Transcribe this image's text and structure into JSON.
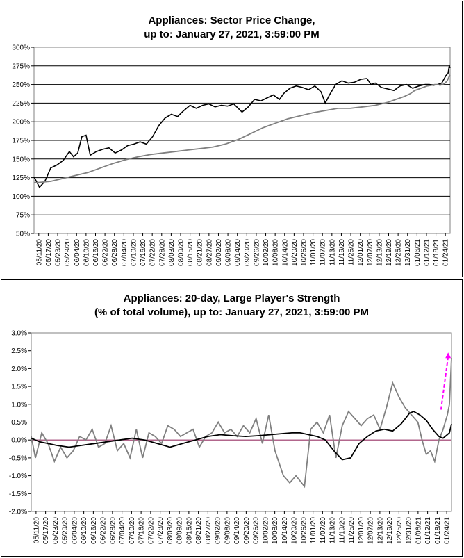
{
  "chart_data": [
    {
      "type": "line",
      "title_line1": "Appliances: Sector Price Change,",
      "title_line2": "up to: January 27, 2021, 3:59:00 PM",
      "ylim": [
        50,
        300
      ],
      "y_ticks": [
        "50%",
        "75%",
        "100%",
        "125%",
        "150%",
        "175%",
        "200%",
        "225%",
        "250%",
        "275%",
        "300%"
      ],
      "x_ticks": [
        "05/11/20",
        "05/17/20",
        "05/23/20",
        "05/29/20",
        "06/04/20",
        "06/10/20",
        "06/16/20",
        "06/22/20",
        "06/28/20",
        "07/04/20",
        "07/10/20",
        "07/16/20",
        "07/22/20",
        "07/28/20",
        "08/03/20",
        "08/09/20",
        "08/15/20",
        "08/21/20",
        "08/27/20",
        "09/02/20",
        "09/08/20",
        "09/14/20",
        "09/20/20",
        "09/26/20",
        "10/02/20",
        "10/08/20",
        "10/14/20",
        "10/20/20",
        "10/26/20",
        "11/01/20",
        "11/07/20",
        "11/13/20",
        "11/19/20",
        "11/25/20",
        "12/01/20",
        "12/07/20",
        "12/13/20",
        "12/19/20",
        "12/25/20",
        "12/31/20",
        "01/06/21",
        "01/12/21",
        "01/18/21",
        "01/24/21"
      ],
      "grid": true,
      "series": [
        {
          "color": "#000000",
          "values": [
            126,
            112,
            120,
            138,
            142,
            148,
            160,
            153,
            158,
            180,
            182,
            155,
            160,
            163,
            165,
            158,
            162,
            168,
            170,
            173,
            170,
            180,
            195,
            205,
            210,
            207,
            215,
            222,
            218,
            222,
            224,
            220,
            222,
            221,
            224,
            213,
            220,
            230,
            228,
            232,
            236,
            230,
            238,
            245,
            248,
            246,
            243,
            248,
            240,
            225,
            236,
            250,
            255,
            252,
            253,
            257,
            258,
            250,
            252,
            246,
            244,
            242,
            248,
            250,
            245,
            248,
            250,
            250,
            249,
            250,
            252,
            262,
            265,
            275,
            272
          ],
          "x_frac": [
            0,
            0.013,
            0.026,
            0.04,
            0.055,
            0.07,
            0.085,
            0.095,
            0.105,
            0.115,
            0.125,
            0.135,
            0.15,
            0.165,
            0.18,
            0.195,
            0.21,
            0.225,
            0.24,
            0.255,
            0.27,
            0.285,
            0.3,
            0.315,
            0.33,
            0.345,
            0.36,
            0.375,
            0.39,
            0.405,
            0.42,
            0.435,
            0.45,
            0.465,
            0.48,
            0.5,
            0.515,
            0.53,
            0.545,
            0.56,
            0.575,
            0.59,
            0.6,
            0.615,
            0.63,
            0.645,
            0.66,
            0.675,
            0.69,
            0.7,
            0.71,
            0.725,
            0.74,
            0.755,
            0.77,
            0.785,
            0.8,
            0.81,
            0.82,
            0.835,
            0.85,
            0.865,
            0.88,
            0.895,
            0.91,
            0.925,
            0.94,
            0.95,
            0.96,
            0.97,
            0.98,
            0.99,
            0.995,
            0.998,
            1.0
          ]
        },
        {
          "color": "#808080",
          "values": [
            118,
            120,
            124,
            128,
            132,
            138,
            144,
            149,
            153,
            156,
            158,
            160,
            162,
            164,
            166,
            170,
            176,
            184,
            192,
            198,
            204,
            208,
            212,
            215,
            218,
            218,
            220,
            222,
            226,
            230,
            234,
            238,
            242,
            244,
            246,
            248,
            249,
            250,
            250,
            249,
            250,
            252,
            255,
            260,
            263
          ],
          "x_frac": [
            0,
            0.04,
            0.07,
            0.1,
            0.13,
            0.16,
            0.19,
            0.22,
            0.25,
            0.28,
            0.31,
            0.34,
            0.37,
            0.4,
            0.43,
            0.46,
            0.49,
            0.52,
            0.55,
            0.58,
            0.61,
            0.64,
            0.67,
            0.7,
            0.73,
            0.76,
            0.79,
            0.82,
            0.85,
            0.87,
            0.89,
            0.905,
            0.915,
            0.925,
            0.935,
            0.945,
            0.955,
            0.963,
            0.97,
            0.976,
            0.982,
            0.988,
            0.993,
            0.997,
            1.0
          ]
        }
      ]
    },
    {
      "type": "line",
      "title_line1": "Appliances: 20-day, Large Player's Strength",
      "title_line2": "(% of total volume), up to: January 27, 2021, 3:59:00 PM",
      "ylim": [
        -2.0,
        3.0
      ],
      "y_ticks": [
        "-2.0%",
        "-1.5%",
        "-1.0%",
        "-0.5%",
        "0.0%",
        "0.5%",
        "1.0%",
        "1.5%",
        "2.0%",
        "2.5%",
        "3.0%"
      ],
      "x_ticks": [
        "05/11/20",
        "05/17/20",
        "05/23/20",
        "05/29/20",
        "06/04/20",
        "06/10/20",
        "06/16/20",
        "06/22/20",
        "06/28/20",
        "07/04/20",
        "07/10/20",
        "07/16/20",
        "07/22/20",
        "07/28/20",
        "08/03/20",
        "08/09/20",
        "08/15/20",
        "08/21/20",
        "08/27/20",
        "09/02/20",
        "09/08/20",
        "09/14/20",
        "09/20/20",
        "09/26/20",
        "10/02/20",
        "10/08/20",
        "10/14/20",
        "10/20/20",
        "10/26/20",
        "11/01/20",
        "11/07/20",
        "11/13/20",
        "11/19/20",
        "11/25/20",
        "12/01/20",
        "12/07/20",
        "12/13/20",
        "12/19/20",
        "12/25/20",
        "12/31/20",
        "01/06/21",
        "01/12/21",
        "01/18/21",
        "01/24/21"
      ],
      "grid": false,
      "zero_line_color": "#993366",
      "arrow_color": "#ff00ff",
      "series": [
        {
          "color": "#808080",
          "values": [
            0.1,
            -0.5,
            0.2,
            -0.1,
            -0.6,
            -0.2,
            -0.5,
            -0.3,
            0.1,
            0.0,
            0.3,
            -0.2,
            -0.1,
            0.4,
            -0.3,
            -0.1,
            -0.5,
            0.3,
            -0.5,
            0.2,
            0.1,
            -0.1,
            0.4,
            0.3,
            0.1,
            0.2,
            0.3,
            -0.2,
            0.1,
            0.2,
            0.5,
            0.2,
            0.3,
            0.1,
            0.4,
            0.2,
            0.6,
            -0.1,
            0.7,
            -0.3,
            -1.0,
            -1.2,
            -1.0,
            -1.3,
            0.3,
            0.5,
            0.2,
            0.7,
            -0.5,
            0.4,
            0.8,
            0.6,
            0.4,
            0.6,
            0.7,
            0.3,
            0.9,
            1.6,
            1.2,
            0.9,
            0.7,
            0.5,
            0.0,
            -0.4,
            -0.3,
            -0.6,
            0.0,
            0.3,
            0.7,
            1.0,
            2.3
          ],
          "x_frac": [
            0,
            0.01,
            0.025,
            0.04,
            0.055,
            0.07,
            0.085,
            0.1,
            0.115,
            0.13,
            0.145,
            0.16,
            0.175,
            0.19,
            0.205,
            0.22,
            0.235,
            0.25,
            0.265,
            0.28,
            0.295,
            0.31,
            0.325,
            0.34,
            0.355,
            0.37,
            0.385,
            0.4,
            0.415,
            0.43,
            0.445,
            0.46,
            0.475,
            0.49,
            0.505,
            0.52,
            0.535,
            0.55,
            0.565,
            0.58,
            0.6,
            0.615,
            0.63,
            0.65,
            0.665,
            0.68,
            0.695,
            0.71,
            0.725,
            0.74,
            0.755,
            0.77,
            0.785,
            0.8,
            0.815,
            0.83,
            0.845,
            0.86,
            0.875,
            0.89,
            0.905,
            0.92,
            0.93,
            0.94,
            0.95,
            0.96,
            0.97,
            0.98,
            0.99,
            0.995,
            1.0
          ]
        },
        {
          "color": "#000000",
          "values": [
            0.05,
            -0.05,
            -0.1,
            -0.15,
            -0.2,
            -0.15,
            -0.1,
            -0.05,
            0.0,
            0.05,
            0.0,
            -0.1,
            -0.2,
            -0.1,
            0.0,
            0.1,
            0.15,
            0.12,
            0.1,
            0.12,
            0.15,
            0.18,
            0.2,
            0.2,
            0.15,
            0.1,
            0.0,
            -0.3,
            -0.55,
            -0.5,
            -0.1,
            0.1,
            0.25,
            0.3,
            0.25,
            0.35,
            0.45,
            0.6,
            0.75,
            0.8,
            0.7,
            0.55,
            0.3,
            0.1,
            0.05,
            0.15,
            0.2,
            0.45
          ],
          "x_frac": [
            0,
            0.02,
            0.04,
            0.06,
            0.09,
            0.12,
            0.15,
            0.18,
            0.21,
            0.24,
            0.27,
            0.3,
            0.33,
            0.36,
            0.39,
            0.42,
            0.45,
            0.48,
            0.51,
            0.54,
            0.57,
            0.6,
            0.62,
            0.64,
            0.66,
            0.68,
            0.7,
            0.72,
            0.74,
            0.76,
            0.78,
            0.8,
            0.82,
            0.84,
            0.86,
            0.87,
            0.88,
            0.89,
            0.9,
            0.91,
            0.925,
            0.94,
            0.955,
            0.97,
            0.98,
            0.99,
            0.995,
            1.0
          ]
        }
      ]
    }
  ]
}
